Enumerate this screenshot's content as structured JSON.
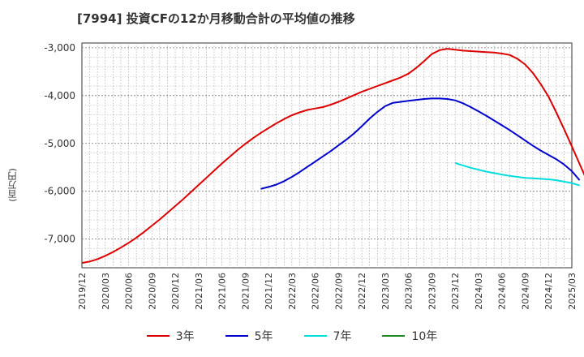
{
  "title": "[7994]  投資CFの12か月移動合計の平均値の推移",
  "y_unit": "(百万円)",
  "chart_data": {
    "type": "line",
    "title": "[7994]  投資CFの12か月移動合計の平均値の推移",
    "ylabel": "(百万円)",
    "xlabel": "",
    "ylim": [
      -7600,
      -2900
    ],
    "y_ticks": [
      -3000,
      -4000,
      -5000,
      -6000,
      -7000
    ],
    "y_tick_labels": [
      "-3,000",
      "-4,000",
      "-5,000",
      "-6,000",
      "-7,000"
    ],
    "x_ticks": [
      "2019/12",
      "2020/03",
      "2020/06",
      "2020/09",
      "2020/12",
      "2021/03",
      "2021/06",
      "2021/09",
      "2021/12",
      "2022/03",
      "2022/06",
      "2022/09",
      "2022/12",
      "2023/03",
      "2023/06",
      "2023/09",
      "2023/12",
      "2024/03",
      "2024/06",
      "2024/09",
      "2024/12",
      "2025/03"
    ],
    "grid": true,
    "legend_position": "bottom",
    "series": [
      {
        "name": "3年",
        "color": "#dd0000",
        "points": [
          [
            "2019/12",
            -7500
          ],
          [
            "2020/01",
            -7470
          ],
          [
            "2020/02",
            -7420
          ],
          [
            "2020/03",
            -7350
          ],
          [
            "2020/04",
            -7270
          ],
          [
            "2020/05",
            -7180
          ],
          [
            "2020/06",
            -7080
          ],
          [
            "2020/07",
            -6970
          ],
          [
            "2020/08",
            -6850
          ],
          [
            "2020/09",
            -6720
          ],
          [
            "2020/10",
            -6590
          ],
          [
            "2020/11",
            -6450
          ],
          [
            "2020/12",
            -6310
          ],
          [
            "2021/01",
            -6170
          ],
          [
            "2021/02",
            -6020
          ],
          [
            "2021/03",
            -5870
          ],
          [
            "2021/04",
            -5720
          ],
          [
            "2021/05",
            -5570
          ],
          [
            "2021/06",
            -5420
          ],
          [
            "2021/07",
            -5280
          ],
          [
            "2021/08",
            -5140
          ],
          [
            "2021/09",
            -5010
          ],
          [
            "2021/10",
            -4890
          ],
          [
            "2021/11",
            -4780
          ],
          [
            "2021/12",
            -4680
          ],
          [
            "2022/01",
            -4580
          ],
          [
            "2022/02",
            -4490
          ],
          [
            "2022/03",
            -4410
          ],
          [
            "2022/04",
            -4350
          ],
          [
            "2022/05",
            -4300
          ],
          [
            "2022/06",
            -4270
          ],
          [
            "2022/07",
            -4240
          ],
          [
            "2022/08",
            -4190
          ],
          [
            "2022/09",
            -4130
          ],
          [
            "2022/10",
            -4060
          ],
          [
            "2022/11",
            -3990
          ],
          [
            "2022/12",
            -3920
          ],
          [
            "2023/01",
            -3860
          ],
          [
            "2023/02",
            -3800
          ],
          [
            "2023/03",
            -3740
          ],
          [
            "2023/04",
            -3680
          ],
          [
            "2023/05",
            -3620
          ],
          [
            "2023/06",
            -3540
          ],
          [
            "2023/07",
            -3420
          ],
          [
            "2023/08",
            -3280
          ],
          [
            "2023/09",
            -3130
          ],
          [
            "2023/10",
            -3050
          ],
          [
            "2023/11",
            -3020
          ],
          [
            "2023/12",
            -3040
          ],
          [
            "2024/01",
            -3060
          ],
          [
            "2024/02",
            -3070
          ],
          [
            "2024/03",
            -3080
          ],
          [
            "2024/04",
            -3090
          ],
          [
            "2024/05",
            -3100
          ],
          [
            "2024/06",
            -3120
          ],
          [
            "2024/07",
            -3150
          ],
          [
            "2024/08",
            -3230
          ],
          [
            "2024/09",
            -3350
          ],
          [
            "2024/10",
            -3530
          ],
          [
            "2024/11",
            -3760
          ],
          [
            "2024/12",
            -4020
          ],
          [
            "2025/01",
            -4350
          ],
          [
            "2025/02",
            -4700
          ],
          [
            "2025/03",
            -5060
          ],
          [
            "2025/04",
            -5430
          ],
          [
            "2025/05",
            -5800
          ],
          [
            "2025/06",
            -6160
          ],
          [
            "2025/07",
            -6520
          ],
          [
            "2025/08",
            -6880
          ],
          [
            "2025/09",
            -7270
          ]
        ]
      },
      {
        "name": "5年",
        "color": "#0000cc",
        "points": [
          [
            "2021/11",
            -5950
          ],
          [
            "2021/12",
            -5910
          ],
          [
            "2022/01",
            -5860
          ],
          [
            "2022/02",
            -5790
          ],
          [
            "2022/03",
            -5700
          ],
          [
            "2022/04",
            -5600
          ],
          [
            "2022/05",
            -5490
          ],
          [
            "2022/06",
            -5380
          ],
          [
            "2022/07",
            -5270
          ],
          [
            "2022/08",
            -5160
          ],
          [
            "2022/09",
            -5040
          ],
          [
            "2022/10",
            -4920
          ],
          [
            "2022/11",
            -4790
          ],
          [
            "2022/12",
            -4640
          ],
          [
            "2023/01",
            -4480
          ],
          [
            "2023/02",
            -4340
          ],
          [
            "2023/03",
            -4220
          ],
          [
            "2023/04",
            -4150
          ],
          [
            "2023/05",
            -4130
          ],
          [
            "2023/06",
            -4110
          ],
          [
            "2023/07",
            -4090
          ],
          [
            "2023/08",
            -4070
          ],
          [
            "2023/09",
            -4060
          ],
          [
            "2023/10",
            -4060
          ],
          [
            "2023/11",
            -4070
          ],
          [
            "2023/12",
            -4100
          ],
          [
            "2024/01",
            -4160
          ],
          [
            "2024/02",
            -4240
          ],
          [
            "2024/03",
            -4330
          ],
          [
            "2024/04",
            -4420
          ],
          [
            "2024/05",
            -4520
          ],
          [
            "2024/06",
            -4620
          ],
          [
            "2024/07",
            -4720
          ],
          [
            "2024/08",
            -4830
          ],
          [
            "2024/09",
            -4940
          ],
          [
            "2024/10",
            -5050
          ],
          [
            "2024/11",
            -5150
          ],
          [
            "2024/12",
            -5240
          ],
          [
            "2025/01",
            -5330
          ],
          [
            "2025/02",
            -5440
          ],
          [
            "2025/03",
            -5580
          ],
          [
            "2025/04",
            -5770
          ]
        ]
      },
      {
        "name": "7年",
        "color": "#00dddd",
        "points": [
          [
            "2023/12",
            -5410
          ],
          [
            "2024/01",
            -5460
          ],
          [
            "2024/02",
            -5510
          ],
          [
            "2024/03",
            -5550
          ],
          [
            "2024/04",
            -5590
          ],
          [
            "2024/05",
            -5620
          ],
          [
            "2024/06",
            -5650
          ],
          [
            "2024/07",
            -5680
          ],
          [
            "2024/08",
            -5700
          ],
          [
            "2024/09",
            -5720
          ],
          [
            "2024/10",
            -5730
          ],
          [
            "2024/11",
            -5740
          ],
          [
            "2024/12",
            -5750
          ],
          [
            "2025/01",
            -5770
          ],
          [
            "2025/02",
            -5800
          ],
          [
            "2025/03",
            -5830
          ],
          [
            "2025/04",
            -5880
          ]
        ]
      },
      {
        "name": "10年",
        "color": "#228822",
        "points": []
      }
    ]
  }
}
